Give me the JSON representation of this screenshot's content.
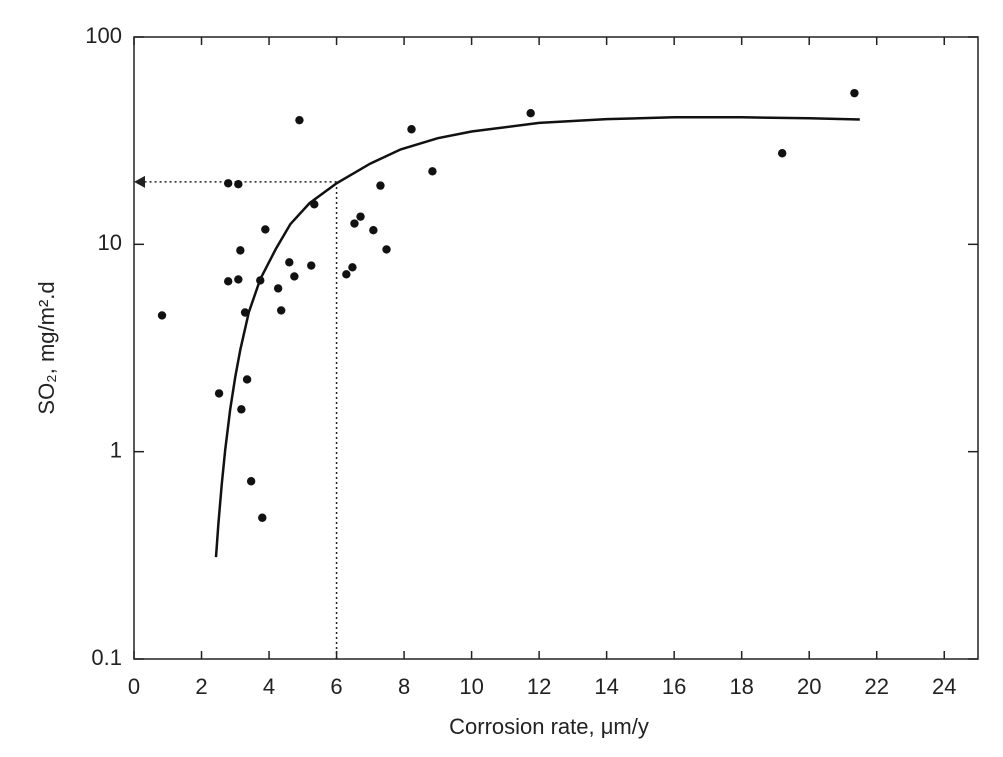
{
  "chart_data": {
    "type": "scatter",
    "xlabel": "Corrosion rate, μm/y",
    "ylabel": "SO₂, mg/m².d",
    "xlim": [
      0,
      25
    ],
    "xticks": [
      0,
      2,
      4,
      6,
      8,
      10,
      12,
      14,
      16,
      18,
      20,
      22,
      24
    ],
    "ylim": [
      0.1,
      100
    ],
    "yticks": [
      0.1,
      1,
      10,
      100
    ],
    "yscale": "log",
    "series": [
      {
        "type": "scatter",
        "color": "#111111",
        "x": [
          0.83,
          2.52,
          2.79,
          2.79,
          3.09,
          3.09,
          3.15,
          3.18,
          3.29,
          3.35,
          3.47,
          3.74,
          3.8,
          3.89,
          4.27,
          4.36,
          4.6,
          4.75,
          4.9,
          5.25,
          5.34,
          6.29,
          6.47,
          6.53,
          6.71,
          7.09,
          7.3,
          7.48,
          8.22,
          8.84,
          11.75,
          19.2,
          21.34
        ],
        "values": [
          4.54,
          1.91,
          19.7,
          6.63,
          19.5,
          6.77,
          9.35,
          1.6,
          4.69,
          2.23,
          0.72,
          6.7,
          0.48,
          11.8,
          6.13,
          4.8,
          8.19,
          7.0,
          39.7,
          7.9,
          15.6,
          7.17,
          7.75,
          12.6,
          13.6,
          11.7,
          19.2,
          9.45,
          35.9,
          22.5,
          42.9,
          27.5,
          53.6
        ]
      },
      {
        "type": "line",
        "color": "#111111",
        "x": [
          2.43,
          2.5,
          2.6,
          2.7,
          2.85,
          3.0,
          3.15,
          3.4,
          3.74,
          4.2,
          4.63,
          5.2,
          6.0,
          7.0,
          7.9,
          9.0,
          10,
          12,
          14,
          16,
          18,
          20,
          21.5
        ],
        "values": [
          0.31,
          0.45,
          0.7,
          1.02,
          1.6,
          2.3,
          3.1,
          4.7,
          6.8,
          9.5,
          12.5,
          15.8,
          19.7,
          24.5,
          28.7,
          32.5,
          35,
          38.5,
          40.2,
          41,
          41,
          40.6,
          40
        ]
      }
    ],
    "reference": {
      "x": 6,
      "y": 20,
      "style": "dotted"
    }
  }
}
